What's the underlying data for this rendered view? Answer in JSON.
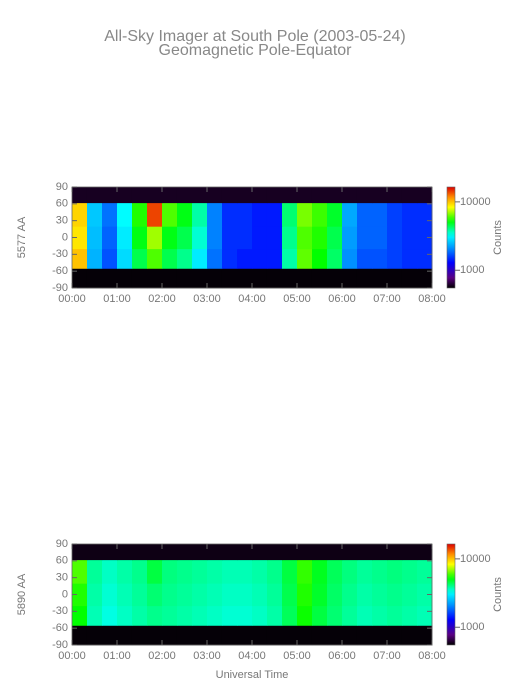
{
  "title": "All-Sky Imager at South Pole (2003-05-24)",
  "subtitle": "Geomagnetic Pole-Equator",
  "chart_data": [
    {
      "type": "heatmap",
      "ylabel": "5577 AA",
      "colorbar_label": "Counts",
      "colormap": "rainbow",
      "log_color": true,
      "xlim": [
        0,
        8
      ],
      "ylim": [
        -90,
        90
      ],
      "clim": [
        550,
        16500
      ],
      "xticks": [
        {
          "value": 0,
          "label": "00:00"
        },
        {
          "value": 1,
          "label": "01:00"
        },
        {
          "value": 2,
          "label": "02:00"
        },
        {
          "value": 3,
          "label": "03:00"
        },
        {
          "value": 4,
          "label": "04:00"
        },
        {
          "value": 5,
          "label": "05:00"
        },
        {
          "value": 6,
          "label": "06:00"
        },
        {
          "value": 7,
          "label": "07:00"
        },
        {
          "value": 8,
          "label": "08:00"
        }
      ],
      "yticks": [
        -90,
        -60,
        -30,
        0,
        30,
        60,
        90
      ],
      "cticks": [
        1000,
        10000
      ],
      "xbins": [
        0,
        0.3333,
        0.6667,
        1,
        1.3333,
        1.6667,
        2,
        2.3333,
        2.6667,
        3,
        3.3333,
        3.6667,
        4,
        4.3333,
        4.6667,
        5,
        5.3333,
        5.6667,
        6,
        6.3333,
        6.6667,
        7,
        7.3333,
        7.6667,
        8
      ],
      "ybins": [
        -90,
        -55,
        -20,
        20,
        62,
        90
      ],
      "z": [
        [
          560,
          560,
          560,
          560,
          560,
          560,
          560,
          560,
          560,
          560,
          560,
          560,
          560,
          560,
          560,
          560,
          560,
          560,
          560,
          560,
          560,
          560,
          560,
          560
        ],
        [
          10000,
          2400,
          1700,
          2800,
          4500,
          6000,
          4500,
          4000,
          3000,
          1900,
          1500,
          1400,
          1400,
          1400,
          3800,
          6200,
          5200,
          4300,
          2100,
          1700,
          1700,
          1600,
          1500,
          1500
        ],
        [
          9000,
          2500,
          1800,
          3000,
          5000,
          7000,
          5000,
          4500,
          3500,
          2000,
          1500,
          1500,
          1400,
          1400,
          4000,
          6000,
          5500,
          4500,
          2200,
          1800,
          1800,
          1600,
          1500,
          1500
        ],
        [
          9500,
          2600,
          1900,
          3200,
          5500,
          14000,
          6000,
          5000,
          3800,
          2000,
          1500,
          1500,
          1400,
          1400,
          4200,
          6500,
          5800,
          4800,
          2300,
          1800,
          1800,
          1600,
          1500,
          1500
        ],
        [
          600,
          600,
          600,
          600,
          600,
          600,
          600,
          600,
          600,
          600,
          600,
          600,
          600,
          600,
          600,
          600,
          600,
          600,
          600,
          600,
          600,
          600,
          600,
          600
        ]
      ]
    },
    {
      "type": "heatmap",
      "ylabel": "5890 AA",
      "colorbar_label": "Counts",
      "xlabel": "Universal Time",
      "colormap": "rainbow",
      "log_color": true,
      "xlim": [
        0,
        8
      ],
      "ylim": [
        -90,
        90
      ],
      "clim": [
        550,
        16500
      ],
      "xticks": [
        {
          "value": 0,
          "label": "00:00"
        },
        {
          "value": 1,
          "label": "01:00"
        },
        {
          "value": 2,
          "label": "02:00"
        },
        {
          "value": 3,
          "label": "03:00"
        },
        {
          "value": 4,
          "label": "04:00"
        },
        {
          "value": 5,
          "label": "05:00"
        },
        {
          "value": 6,
          "label": "06:00"
        },
        {
          "value": 7,
          "label": "07:00"
        },
        {
          "value": 8,
          "label": "08:00"
        }
      ],
      "yticks": [
        -90,
        -60,
        -30,
        0,
        30,
        60,
        90
      ],
      "cticks": [
        1000,
        10000
      ],
      "xbins": [
        0,
        0.3333,
        0.6667,
        1,
        1.3333,
        1.6667,
        2,
        2.3333,
        2.6667,
        3,
        3.3333,
        3.6667,
        4,
        4.3333,
        4.6667,
        5,
        5.3333,
        5.6667,
        6,
        6.3333,
        6.6667,
        7,
        7.3333,
        7.6667,
        8
      ],
      "ybins": [
        -90,
        -55,
        -20,
        20,
        62,
        90
      ],
      "z": [
        [
          560,
          560,
          560,
          560,
          560,
          560,
          560,
          560,
          560,
          560,
          560,
          560,
          560,
          560,
          560,
          560,
          560,
          560,
          560,
          560,
          560,
          560,
          560,
          560
        ],
        [
          5200,
          3700,
          3400,
          3600,
          3800,
          4000,
          3900,
          3800,
          3700,
          3600,
          3500,
          3500,
          3600,
          3800,
          4400,
          5300,
          4600,
          4200,
          3900,
          3700,
          3800,
          3900,
          3800,
          3700
        ],
        [
          5500,
          3800,
          3500,
          3700,
          3900,
          4200,
          4000,
          3900,
          3800,
          3700,
          3600,
          3600,
          3700,
          3900,
          4500,
          5500,
          4800,
          4300,
          4000,
          3800,
          3900,
          4000,
          3900,
          3800
        ],
        [
          6000,
          3900,
          3600,
          3800,
          4000,
          4600,
          4100,
          4000,
          3900,
          3800,
          3700,
          3700,
          3800,
          4000,
          4600,
          5700,
          4900,
          4400,
          4100,
          3900,
          4000,
          4100,
          4000,
          3900
        ],
        [
          580,
          580,
          580,
          580,
          580,
          580,
          580,
          580,
          580,
          580,
          580,
          580,
          580,
          580,
          580,
          580,
          580,
          580,
          580,
          580,
          580,
          580,
          580,
          580
        ]
      ]
    }
  ]
}
